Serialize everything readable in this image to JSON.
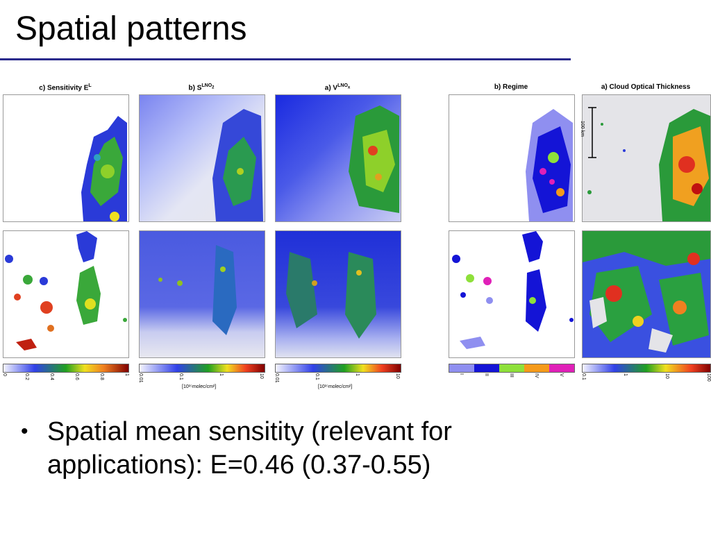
{
  "slide": {
    "title": "Spatial patterns",
    "bullet_char": "•",
    "bullet_text": "Spatial mean sensitity (relevant for applications): E=0.46 (0.37-0.55)"
  },
  "figure_left": {
    "panels": [
      {
        "title": "c) Sensitivity E",
        "sup": "L",
        "colorbar_ticks": [
          "0",
          "0.2",
          "0.4",
          "0.6",
          "0.8",
          "1"
        ],
        "unit": ""
      },
      {
        "title": "b) S",
        "sup": "LNO",
        "sub": "2",
        "colorbar_ticks": [
          "0.01",
          "0.1",
          "1",
          "10"
        ],
        "unit": "[10¹⁵molec/cm²]"
      },
      {
        "title": "a) V",
        "sup": "LNO",
        "sub": "x",
        "colorbar_ticks": [
          "0.01",
          "0.1",
          "1",
          "10"
        ],
        "unit": "[10¹⁵molec/cm²]"
      }
    ]
  },
  "figure_right": {
    "panels": [
      {
        "title": "b) Regime",
        "colorbar_ticks": [
          "I",
          "II",
          "III",
          "IV",
          "V"
        ]
      },
      {
        "title": "a) Cloud Optical Thickness",
        "colorbar_ticks": [
          "0.1",
          "1",
          "10",
          "100"
        ],
        "scale_label": "100 km"
      }
    ]
  },
  "colors": {
    "rule": "#2a2a8c",
    "regime": [
      "#8f8ff0",
      "#1414d6",
      "#8ee03a",
      "#f59a1a",
      "#e020b8"
    ]
  }
}
